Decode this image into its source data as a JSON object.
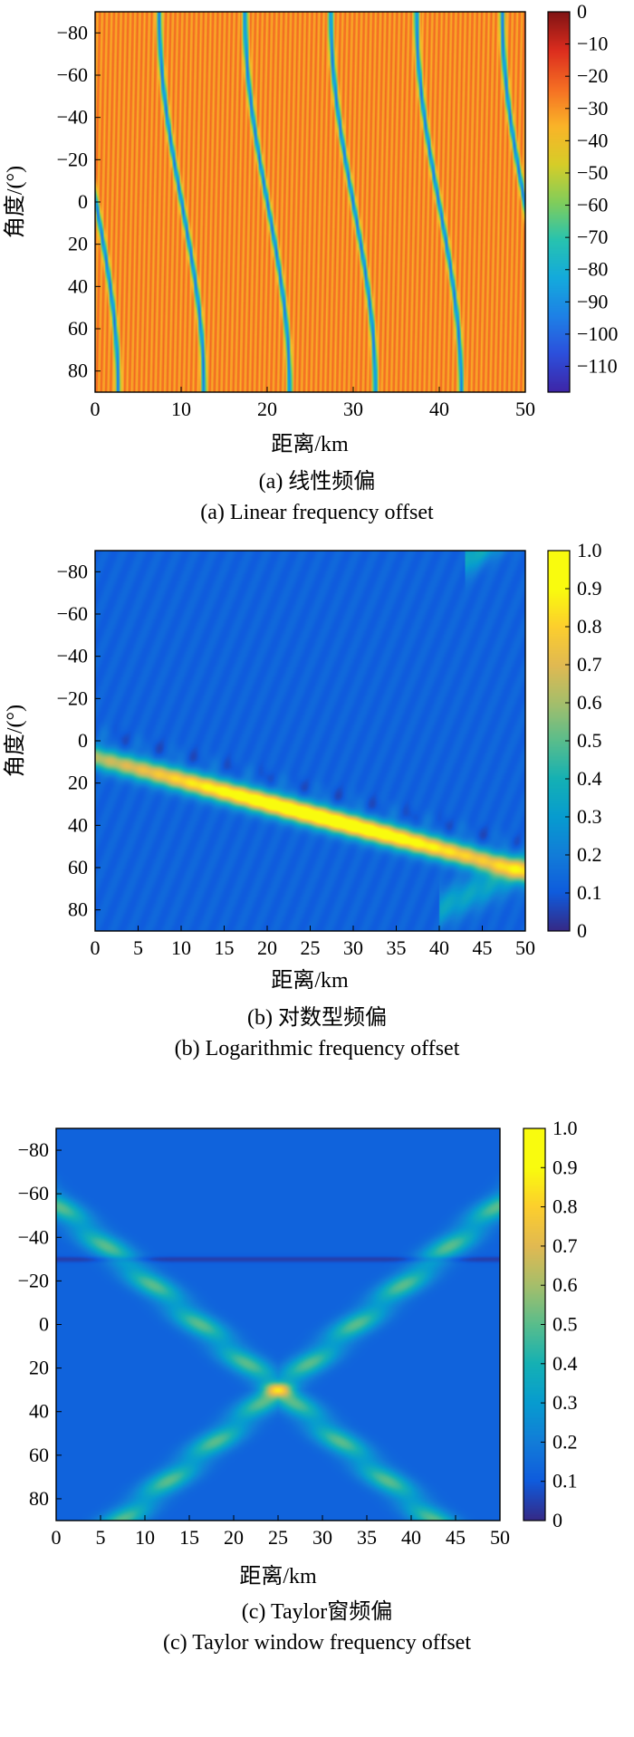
{
  "charts": [
    {
      "caption_cn": "(a) 线性频偏",
      "caption_en": "(a) Linear frequency offset",
      "xlabel": "距离/km",
      "ylabel": "角度/(°)"
    },
    {
      "caption_cn": "(b) 对数型频偏",
      "caption_en": "(b) Logarithmic frequency offset",
      "xlabel": "距离/km",
      "ylabel": "角度/(°)"
    },
    {
      "caption_cn": "(c) Taylor窗频偏",
      "caption_en": "(c) Taylor window frequency offset",
      "xlabel": "距离/km",
      "ylabel": ""
    }
  ],
  "chart_data": [
    {
      "type": "heatmap",
      "x_range": [
        0,
        50
      ],
      "y_range": [
        -90,
        90
      ],
      "y_reversed": true,
      "x_ticks": [
        0,
        10,
        20,
        30,
        40,
        50
      ],
      "y_ticks": [
        -80,
        -60,
        -40,
        -20,
        0,
        20,
        40,
        60,
        80
      ],
      "colorbar_range": [
        -118,
        0
      ],
      "colorbar_ticks": [
        0,
        -10,
        -20,
        -30,
        -40,
        -50,
        -60,
        -70,
        -80,
        -90,
        -100,
        -110
      ],
      "colormap": "parula",
      "pattern": "periodic S-shaped nulls, period 10 km, mostly -20 to -40 dB"
    },
    {
      "type": "heatmap",
      "x_range": [
        0,
        50
      ],
      "y_range": [
        -90,
        90
      ],
      "y_reversed": true,
      "x_ticks": [
        0,
        5,
        10,
        15,
        20,
        25,
        30,
        35,
        40,
        45,
        50
      ],
      "y_ticks": [
        -80,
        -60,
        -40,
        -20,
        0,
        20,
        40,
        60,
        80
      ],
      "colorbar_range": [
        0,
        1
      ],
      "colorbar_ticks": [
        1.0,
        0.9,
        0.8,
        0.7,
        0.6,
        0.5,
        0.4,
        0.3,
        0.2,
        0.1,
        0
      ],
      "colormap": "parula",
      "peak": {
        "x": 26,
        "y": 30,
        "value": 1.0
      },
      "pattern": "diagonal ridge from (0, 8) to (50, 62)"
    },
    {
      "type": "heatmap",
      "x_range": [
        0,
        50
      ],
      "y_range": [
        -90,
        90
      ],
      "y_reversed": true,
      "x_ticks": [
        0,
        5,
        10,
        15,
        20,
        25,
        30,
        35,
        40,
        45,
        50
      ],
      "y_ticks": [
        -80,
        -60,
        -40,
        -20,
        0,
        20,
        40,
        60,
        80
      ],
      "colorbar_range": [
        0,
        1
      ],
      "colorbar_ticks": [
        1.0,
        0.9,
        0.8,
        0.7,
        0.6,
        0.5,
        0.4,
        0.3,
        0.2,
        0.1,
        0
      ],
      "colormap": "parula",
      "peak": {
        "x": 25,
        "y": 30,
        "value": 1.0
      },
      "pattern": "X-shaped lobes crossing at (25, 30), horizontal null near -30"
    }
  ]
}
